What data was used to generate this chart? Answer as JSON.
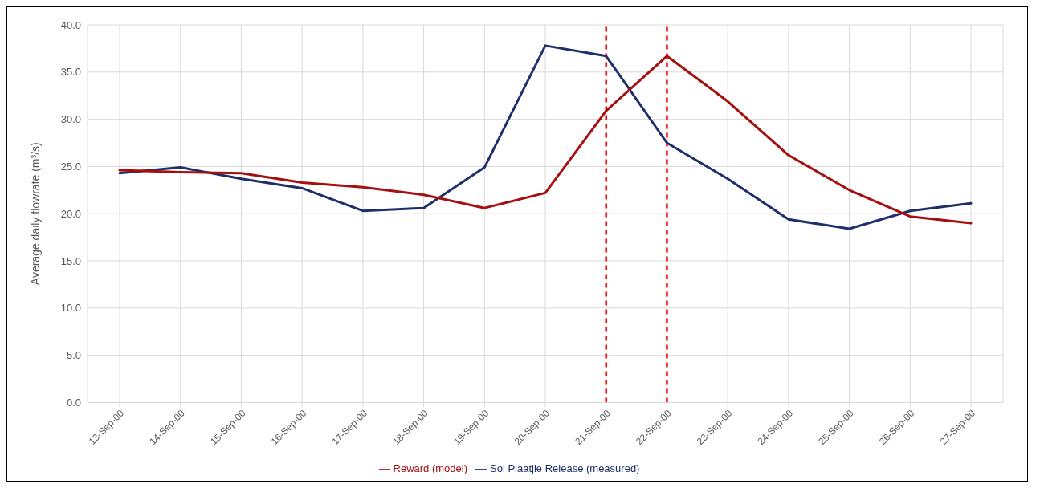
{
  "chart_data": {
    "type": "line",
    "ylabel": "Average daily flowrate (m³/s)",
    "categories": [
      "13-Sep-00",
      "14-Sep-00",
      "15-Sep-00",
      "16-Sep-00",
      "17-Sep-00",
      "18-Sep-00",
      "19-Sep-00",
      "20-Sep-00",
      "21-Sep-00",
      "22-Sep-00",
      "23-Sep-00",
      "24-Sep-00",
      "25-Sep-00",
      "26-Sep-00",
      "27-Sep-00"
    ],
    "series": [
      {
        "name": "Sol Plaatjie Release (measured)",
        "color": "#1f2f6b",
        "values": [
          24.3,
          24.9,
          23.7,
          22.7,
          20.3,
          20.6,
          24.9,
          37.8,
          36.7,
          27.5,
          23.7,
          19.4,
          18.4,
          20.3,
          21.1
        ]
      },
      {
        "name": "Reward (model)",
        "color": "#a50f0f",
        "values": [
          24.6,
          24.4,
          24.3,
          23.3,
          22.8,
          22.0,
          20.6,
          22.2,
          30.9,
          36.7,
          31.9,
          26.2,
          22.5,
          19.7,
          19.0
        ]
      }
    ],
    "ylim": [
      0,
      40
    ],
    "yticks": [
      {
        "value": 0,
        "label": "0.0"
      },
      {
        "value": 5,
        "label": "5.0"
      },
      {
        "value": 10,
        "label": "10.0"
      },
      {
        "value": 15,
        "label": "15.0"
      },
      {
        "value": 20,
        "label": "20.0"
      },
      {
        "value": 25,
        "label": "25.0"
      },
      {
        "value": 30,
        "label": "30.0"
      },
      {
        "value": 35,
        "label": "35.0"
      },
      {
        "value": 40,
        "label": "40.0"
      }
    ],
    "ref_lines": [
      {
        "axis": "x",
        "value": "21-Sep-00",
        "color": "#ff0000",
        "line_style": "dashed"
      },
      {
        "axis": "x",
        "value": "22-Sep-00",
        "color": "#ff0000",
        "line_style": "dashed"
      }
    ],
    "grid": true,
    "legend": "bottom",
    "marker": "none",
    "line_style": "solid"
  }
}
